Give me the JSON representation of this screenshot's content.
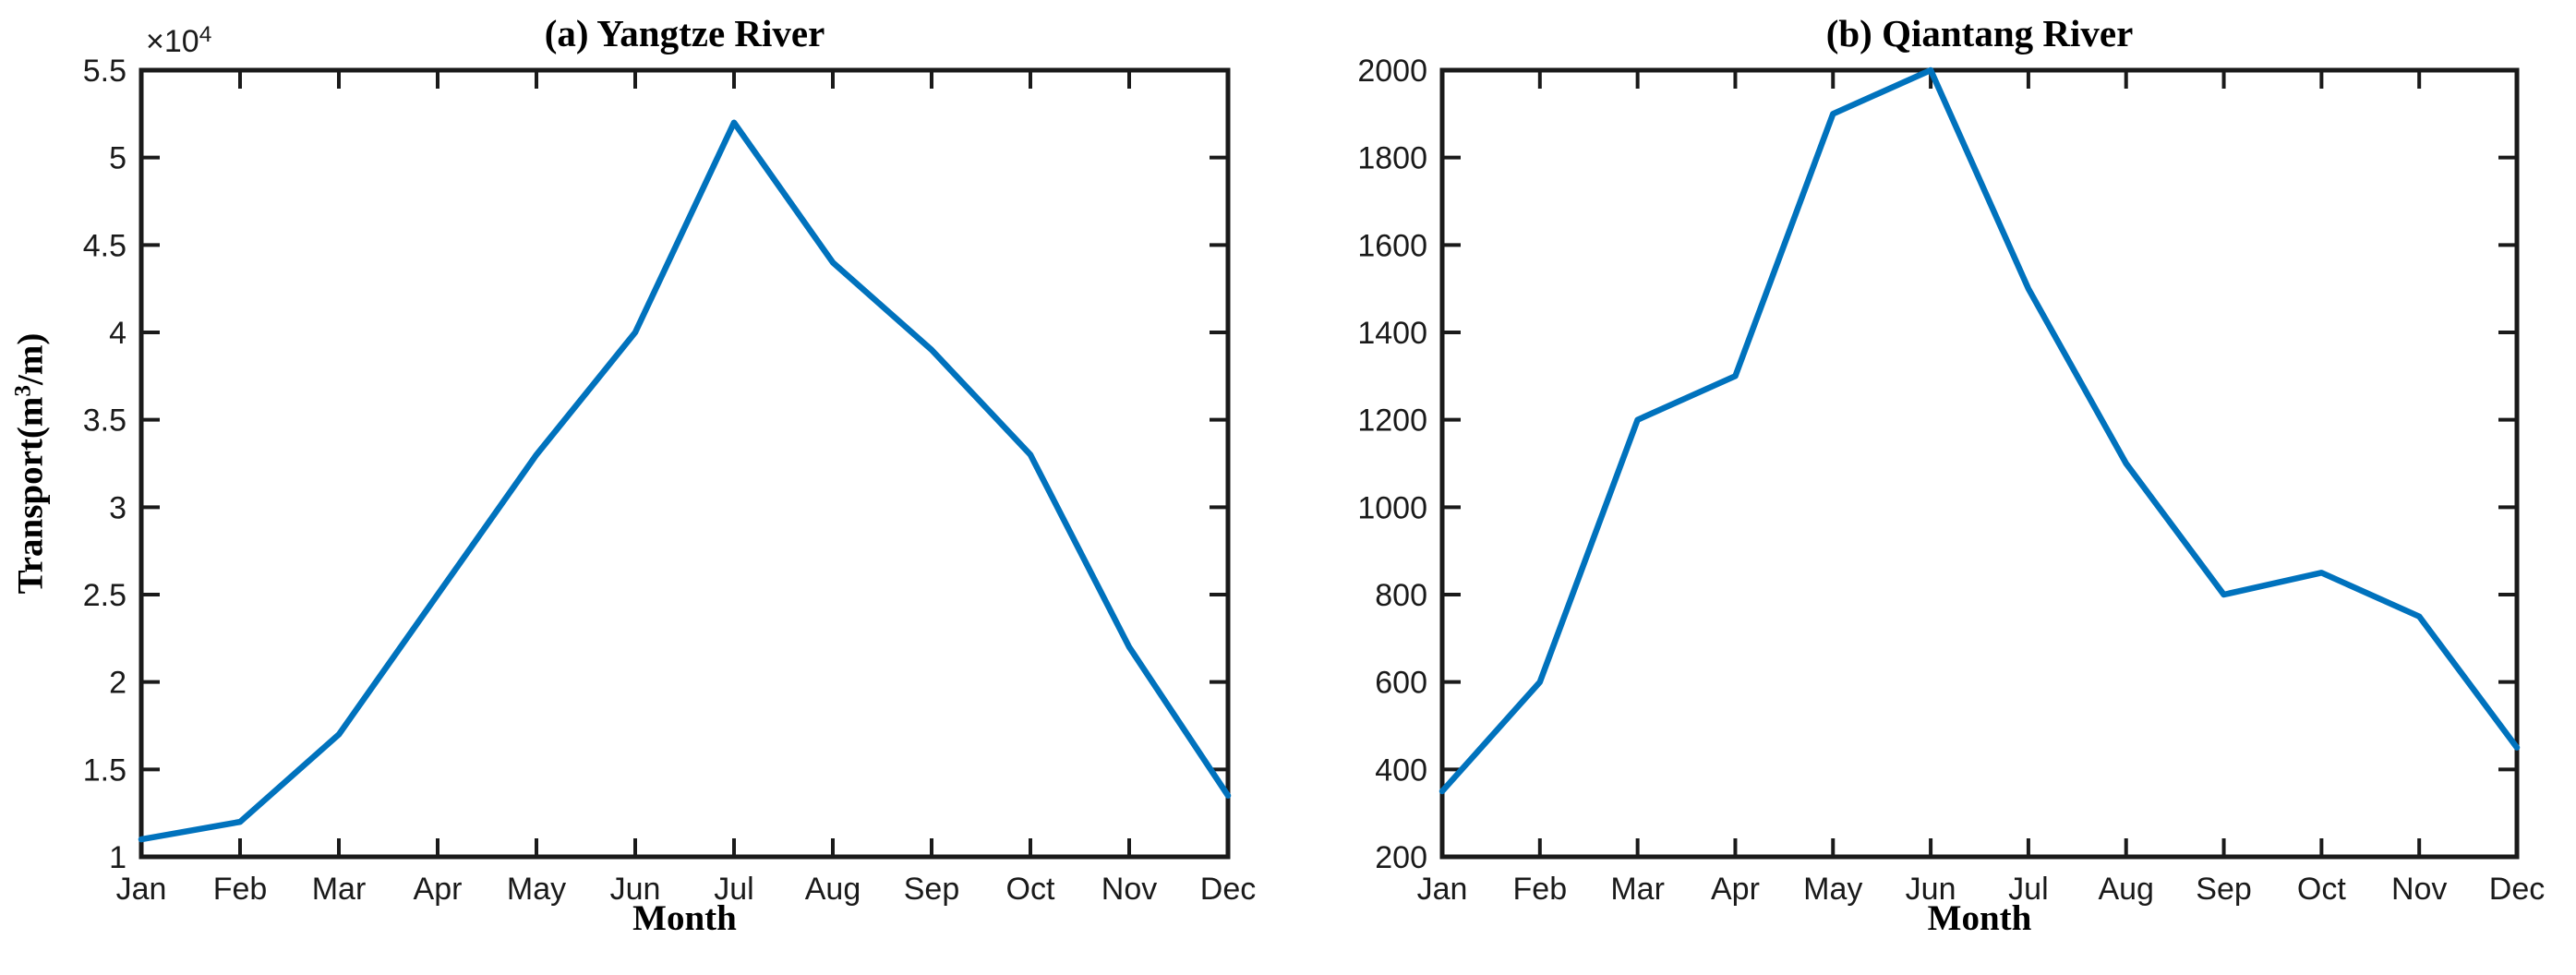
{
  "colors": {
    "line": "#0072BD",
    "axis": "#1a1a1a",
    "background": "#ffffff"
  },
  "chart_data": [
    {
      "type": "line",
      "panel": "a",
      "title": "(a) Yangtze River",
      "xlabel": "Month",
      "ylabel_pre": "Transport(m",
      "ylabel_sup": "3",
      "ylabel_post": "/m)",
      "y_multiplier_base": "×10",
      "y_multiplier_exp": "4",
      "categories": [
        "Jan",
        "Feb",
        "Mar",
        "Apr",
        "May",
        "Jun",
        "Jul",
        "Aug",
        "Sep",
        "Oct",
        "Nov",
        "Dec"
      ],
      "values": [
        1.1,
        1.2,
        1.7,
        2.5,
        3.3,
        4.0,
        5.2,
        4.4,
        3.9,
        3.3,
        2.2,
        1.35
      ],
      "values_scale_note": "values in units of 10^4",
      "ylim": [
        1,
        5.5
      ],
      "ytick_labels": [
        "1",
        "1.5",
        "2",
        "2.5",
        "3",
        "3.5",
        "4",
        "4.5",
        "5",
        "5.5"
      ],
      "grid": "off",
      "legend": "none",
      "line_color": "#0072BD"
    },
    {
      "type": "line",
      "panel": "b",
      "title": "(b) Qiantang River",
      "xlabel": "Month",
      "categories": [
        "Jan",
        "Feb",
        "Mar",
        "Apr",
        "May",
        "Jun",
        "Jul",
        "Aug",
        "Sep",
        "Oct",
        "Nov",
        "Dec"
      ],
      "values": [
        350,
        600,
        1200,
        1300,
        1900,
        2000,
        1500,
        1100,
        800,
        850,
        750,
        450
      ],
      "ylim": [
        200,
        2000
      ],
      "ytick_labels": [
        "200",
        "400",
        "600",
        "800",
        "1000",
        "1200",
        "1400",
        "1600",
        "1800",
        "2000"
      ],
      "grid": "off",
      "legend": "none",
      "line_color": "#0072BD"
    }
  ]
}
